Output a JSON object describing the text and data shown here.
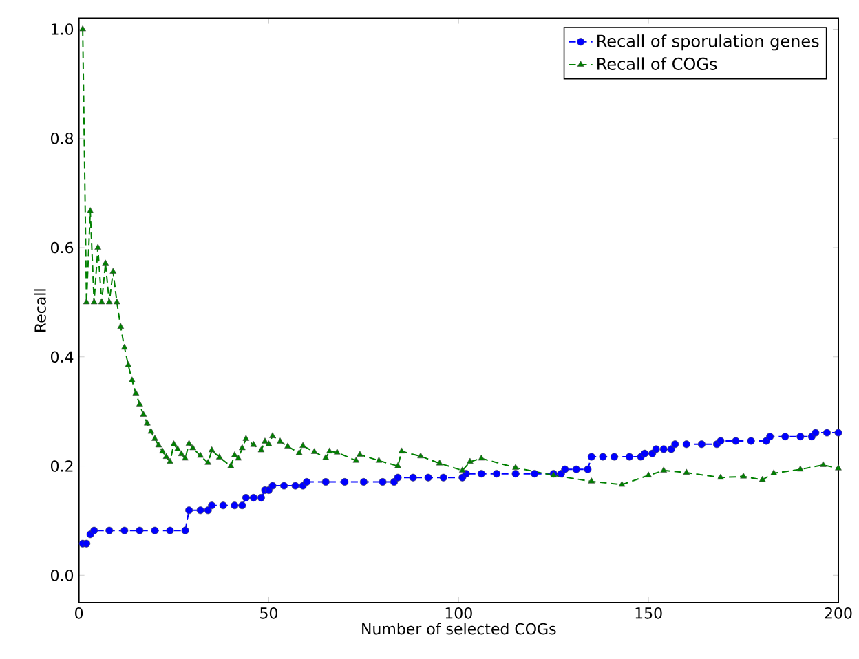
{
  "chart_data": {
    "type": "line",
    "xlabel": "Number of selected COGs",
    "ylabel": "Recall",
    "xlim": [
      0,
      200
    ],
    "xticks": [
      0,
      50,
      100,
      150,
      200
    ],
    "ylim": [
      -0.05,
      1.02
    ],
    "yticks": [
      {
        "value": 0,
        "label": "0.0"
      },
      {
        "value": 0.2,
        "label": "0.2"
      },
      {
        "value": 0.4,
        "label": "0.4"
      },
      {
        "value": 0.6,
        "label": "0.6"
      },
      {
        "value": 0.8,
        "label": "0.8"
      },
      {
        "value": 1,
        "label": "1.0"
      }
    ],
    "legend": "top right",
    "line_style": "dashed",
    "series": [
      {
        "name": "Recall of sporulation genes",
        "color": "#0000ff",
        "marker": "circle",
        "x": [
          1,
          2,
          3,
          4,
          8,
          12,
          16,
          20,
          24,
          28,
          29,
          32,
          34,
          35,
          38,
          41,
          43,
          44,
          46,
          48,
          49,
          50,
          51,
          54,
          57,
          59,
          60,
          65,
          70,
          75,
          80,
          83,
          84,
          88,
          92,
          96,
          101,
          102,
          106,
          110,
          115,
          120,
          125,
          127,
          128,
          131,
          134,
          135,
          138,
          141,
          145,
          148,
          149,
          151,
          152,
          154,
          156,
          157,
          160,
          164,
          168,
          169,
          173,
          177,
          181,
          182,
          186,
          190,
          193,
          194,
          197,
          200
        ],
        "values": [
          0.058,
          0.058,
          0.075,
          0.082,
          0.082,
          0.082,
          0.082,
          0.082,
          0.082,
          0.082,
          0.119,
          0.119,
          0.119,
          0.128,
          0.128,
          0.128,
          0.128,
          0.142,
          0.142,
          0.142,
          0.156,
          0.156,
          0.164,
          0.164,
          0.164,
          0.164,
          0.171,
          0.171,
          0.171,
          0.171,
          0.171,
          0.171,
          0.179,
          0.179,
          0.179,
          0.179,
          0.179,
          0.186,
          0.186,
          0.186,
          0.186,
          0.186,
          0.186,
          0.186,
          0.194,
          0.194,
          0.194,
          0.217,
          0.217,
          0.217,
          0.217,
          0.217,
          0.223,
          0.223,
          0.231,
          0.231,
          0.231,
          0.24,
          0.24,
          0.24,
          0.24,
          0.246,
          0.246,
          0.246,
          0.246,
          0.254,
          0.254,
          0.254,
          0.254,
          0.261,
          0.261,
          0.261
        ]
      },
      {
        "name": "Recall of COGs",
        "color": "#008000",
        "marker": "triangle",
        "x": [
          1,
          2,
          3,
          4,
          5,
          6,
          7,
          8,
          9,
          10,
          11,
          12,
          13,
          14,
          15,
          16,
          17,
          18,
          19,
          20,
          21,
          22,
          23,
          24,
          25,
          26,
          27,
          28,
          29,
          30,
          32,
          34,
          35,
          37,
          40,
          41,
          42,
          43,
          44,
          46,
          48,
          49,
          50,
          51,
          53,
          55,
          58,
          59,
          62,
          65,
          66,
          68,
          73,
          74,
          79,
          84,
          85,
          90,
          95,
          101,
          103,
          106,
          115,
          125,
          135,
          143,
          150,
          154,
          160,
          169,
          175,
          180,
          183,
          190,
          196,
          200
        ],
        "values": [
          1.0,
          0.5,
          0.667,
          0.5,
          0.6,
          0.5,
          0.571,
          0.5,
          0.556,
          0.5,
          0.455,
          0.417,
          0.385,
          0.357,
          0.333,
          0.313,
          0.294,
          0.278,
          0.263,
          0.25,
          0.238,
          0.227,
          0.217,
          0.208,
          0.24,
          0.231,
          0.222,
          0.214,
          0.241,
          0.233,
          0.219,
          0.206,
          0.229,
          0.216,
          0.2,
          0.22,
          0.214,
          0.233,
          0.25,
          0.239,
          0.229,
          0.245,
          0.24,
          0.255,
          0.245,
          0.236,
          0.224,
          0.237,
          0.226,
          0.215,
          0.227,
          0.225,
          0.21,
          0.221,
          0.21,
          0.2,
          0.227,
          0.218,
          0.205,
          0.192,
          0.208,
          0.214,
          0.197,
          0.183,
          0.172,
          0.166,
          0.183,
          0.192,
          0.188,
          0.179,
          0.181,
          0.175,
          0.187,
          0.194,
          0.202,
          0.196
        ]
      }
    ]
  }
}
